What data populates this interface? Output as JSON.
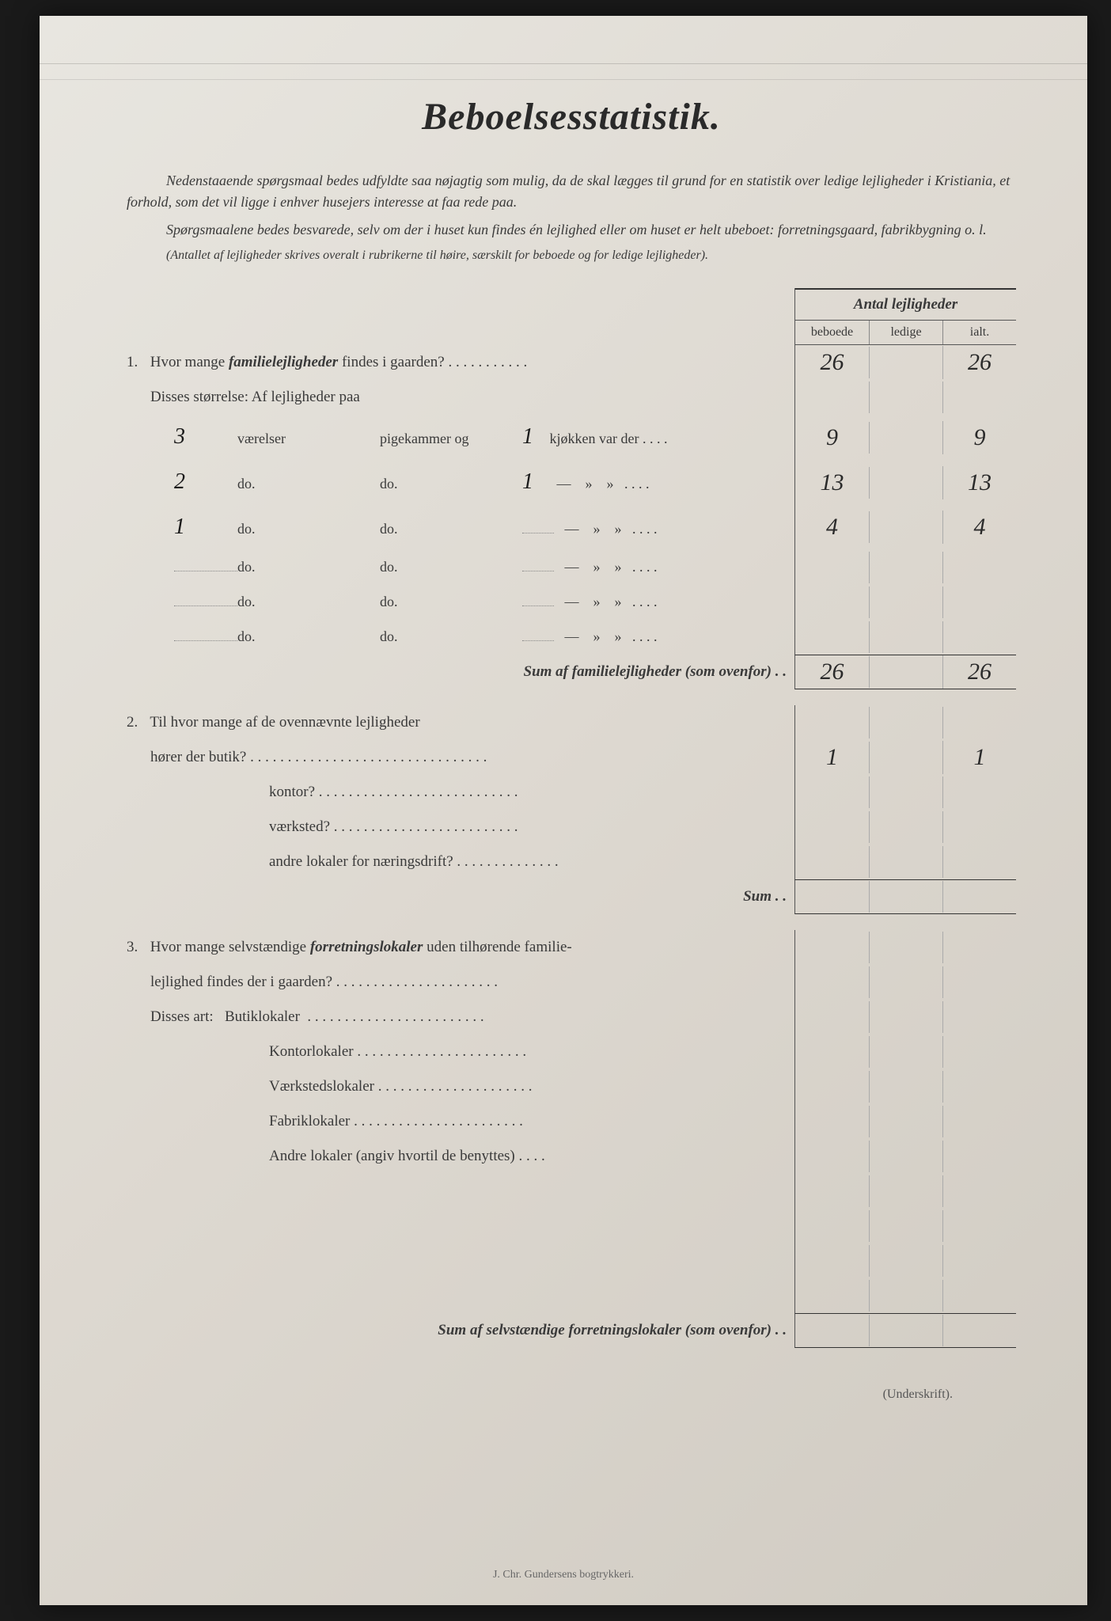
{
  "title": "Beboelsesstatistik.",
  "intro1": "Nedenstaaende spørgsmaal bedes udfyldte saa nøjagtig som mulig, da de skal lægges til grund for en statistik over ledige lejligheder i Kristiania, et forhold, som det vil ligge i enhver husejers interesse at faa rede paa.",
  "intro2": "Spørgsmaalene bedes besvarede, selv om der i huset kun findes én lejlighed eller om huset er helt ubeboet: forretningsgaard, fabrikbygning o. l.",
  "intro3": "(Antallet af lejligheder skrives overalt i rubrikerne til høire, særskilt for beboede og for ledige lejligheder).",
  "header": {
    "main": "Antal lejligheder",
    "c1": "beboede",
    "c2": "ledige",
    "c3": "ialt."
  },
  "q1": {
    "num": "1.",
    "text_a": "Hvor mange ",
    "text_b": "familielejligheder",
    "text_c": " findes i gaarden?",
    "sub": "Disses størrelse:  Af lejligheder paa",
    "line1_rooms": "3",
    "line1_lbl1": "værelser",
    "line1_lbl2": "pigekammer og",
    "line1_kitchen": "1",
    "line1_lbl3": "kjøkken var der",
    "line2_rooms": "2",
    "line2_kitchen": "1",
    "line3_rooms": "1",
    "line3_kitchen": "",
    "do": "do.",
    "dash": "—",
    "sum_label": "Sum af familielejligheder",
    "sum_note": " (som ovenfor)",
    "vals": {
      "total": {
        "b": "26",
        "l": "",
        "i": "26"
      },
      "r1": {
        "b": "9",
        "l": "",
        "i": "9"
      },
      "r2": {
        "b": "13",
        "l": "",
        "i": "13"
      },
      "r3": {
        "b": "4",
        "l": "",
        "i": "4"
      },
      "r4": {
        "b": "",
        "l": "",
        "i": ""
      },
      "r5": {
        "b": "",
        "l": "",
        "i": ""
      },
      "r6": {
        "b": "",
        "l": "",
        "i": ""
      },
      "sum": {
        "b": "26",
        "l": "",
        "i": "26"
      }
    }
  },
  "q2": {
    "num": "2.",
    "text": "Til hvor mange af de ovennævnte lejligheder",
    "r1": "hører der butik?",
    "r2": "kontor?",
    "r3": "værksted?",
    "r4": "andre lokaler for næringsdrift?",
    "sum": "Sum",
    "vals": {
      "r1": {
        "b": "1",
        "l": "",
        "i": "1"
      },
      "r2": {
        "b": "",
        "l": "",
        "i": ""
      },
      "r3": {
        "b": "",
        "l": "",
        "i": ""
      },
      "r4": {
        "b": "",
        "l": "",
        "i": ""
      },
      "sum": {
        "b": "",
        "l": "",
        "i": ""
      }
    }
  },
  "q3": {
    "num": "3.",
    "text_a": "Hvor mange selvstændige ",
    "text_b": "forretningslokaler",
    "text_c": " uden tilhørende familie-",
    "text_d": "lejlighed findes der i gaarden?",
    "sub": "Disses art:",
    "r1": "Butiklokaler",
    "r2": "Kontorlokaler",
    "r3": "Værkstedslokaler",
    "r4": "Fabriklokaler",
    "r5": "Andre lokaler (angiv hvortil de benyttes)",
    "sum_label": "Sum af selvstændige forretningslokaler",
    "sum_note": " (som ovenfor)"
  },
  "signature": "(Underskrift).",
  "printer": "J. Chr. Gundersens bogtrykkeri.",
  "colors": {
    "paper": "#e0dcd4",
    "ink": "#2a2a2a",
    "rule": "#555555"
  }
}
